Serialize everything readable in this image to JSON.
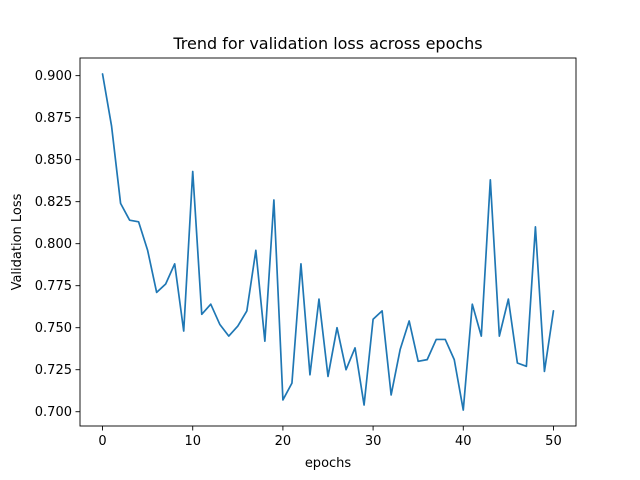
{
  "chart_data": {
    "type": "line",
    "title": "Trend for validation loss across epochs",
    "xlabel": "epochs",
    "ylabel": "Validation Loss",
    "xlim": [
      -2.5,
      52.5
    ],
    "ylim": [
      0.6915,
      0.9105
    ],
    "x_ticks": [
      0,
      10,
      20,
      30,
      40,
      50
    ],
    "x_tick_labels": [
      "0",
      "10",
      "20",
      "30",
      "40",
      "50"
    ],
    "y_ticks": [
      0.7,
      0.725,
      0.75,
      0.775,
      0.8,
      0.825,
      0.85,
      0.875,
      0.9
    ],
    "y_tick_labels": [
      "0.700",
      "0.725",
      "0.750",
      "0.775",
      "0.800",
      "0.825",
      "0.850",
      "0.875",
      "0.900"
    ],
    "grid": false,
    "legend": "none",
    "series": [
      {
        "color": "#1f77b4",
        "x": [
          0,
          1,
          2,
          3,
          4,
          5,
          6,
          7,
          8,
          9,
          10,
          11,
          12,
          13,
          14,
          15,
          16,
          17,
          18,
          19,
          20,
          21,
          22,
          23,
          24,
          25,
          26,
          27,
          28,
          29,
          30,
          31,
          32,
          33,
          34,
          35,
          36,
          37,
          38,
          39,
          40,
          41,
          42,
          43,
          44,
          45,
          46,
          47,
          48,
          49,
          50
        ],
        "values": [
          0.901,
          0.87,
          0.824,
          0.814,
          0.813,
          0.796,
          0.771,
          0.776,
          0.788,
          0.748,
          0.843,
          0.758,
          0.764,
          0.752,
          0.745,
          0.751,
          0.76,
          0.796,
          0.742,
          0.826,
          0.707,
          0.717,
          0.788,
          0.722,
          0.767,
          0.721,
          0.75,
          0.725,
          0.738,
          0.704,
          0.755,
          0.76,
          0.71,
          0.737,
          0.754,
          0.73,
          0.731,
          0.743,
          0.743,
          0.731,
          0.701,
          0.764,
          0.745,
          0.838,
          0.745,
          0.767,
          0.729,
          0.727,
          0.81,
          0.724,
          0.76
        ]
      }
    ]
  }
}
